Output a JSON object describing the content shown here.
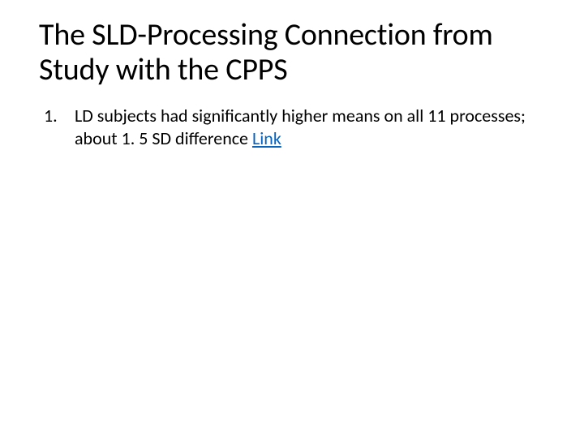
{
  "slide": {
    "title": "The SLD-Processing Connection from Study with the CPPS",
    "title_fontsize": 38,
    "title_color": "#000000",
    "body_fontsize": 22,
    "body_color": "#000000",
    "link_color": "#0563c1",
    "background_color": "#ffffff",
    "list": {
      "type": "ordered",
      "items": [
        {
          "number": "1.",
          "text": "LD subjects had significantly higher means on all 11 processes; about 1. 5 SD difference  ",
          "link_label": "Link"
        }
      ]
    }
  }
}
